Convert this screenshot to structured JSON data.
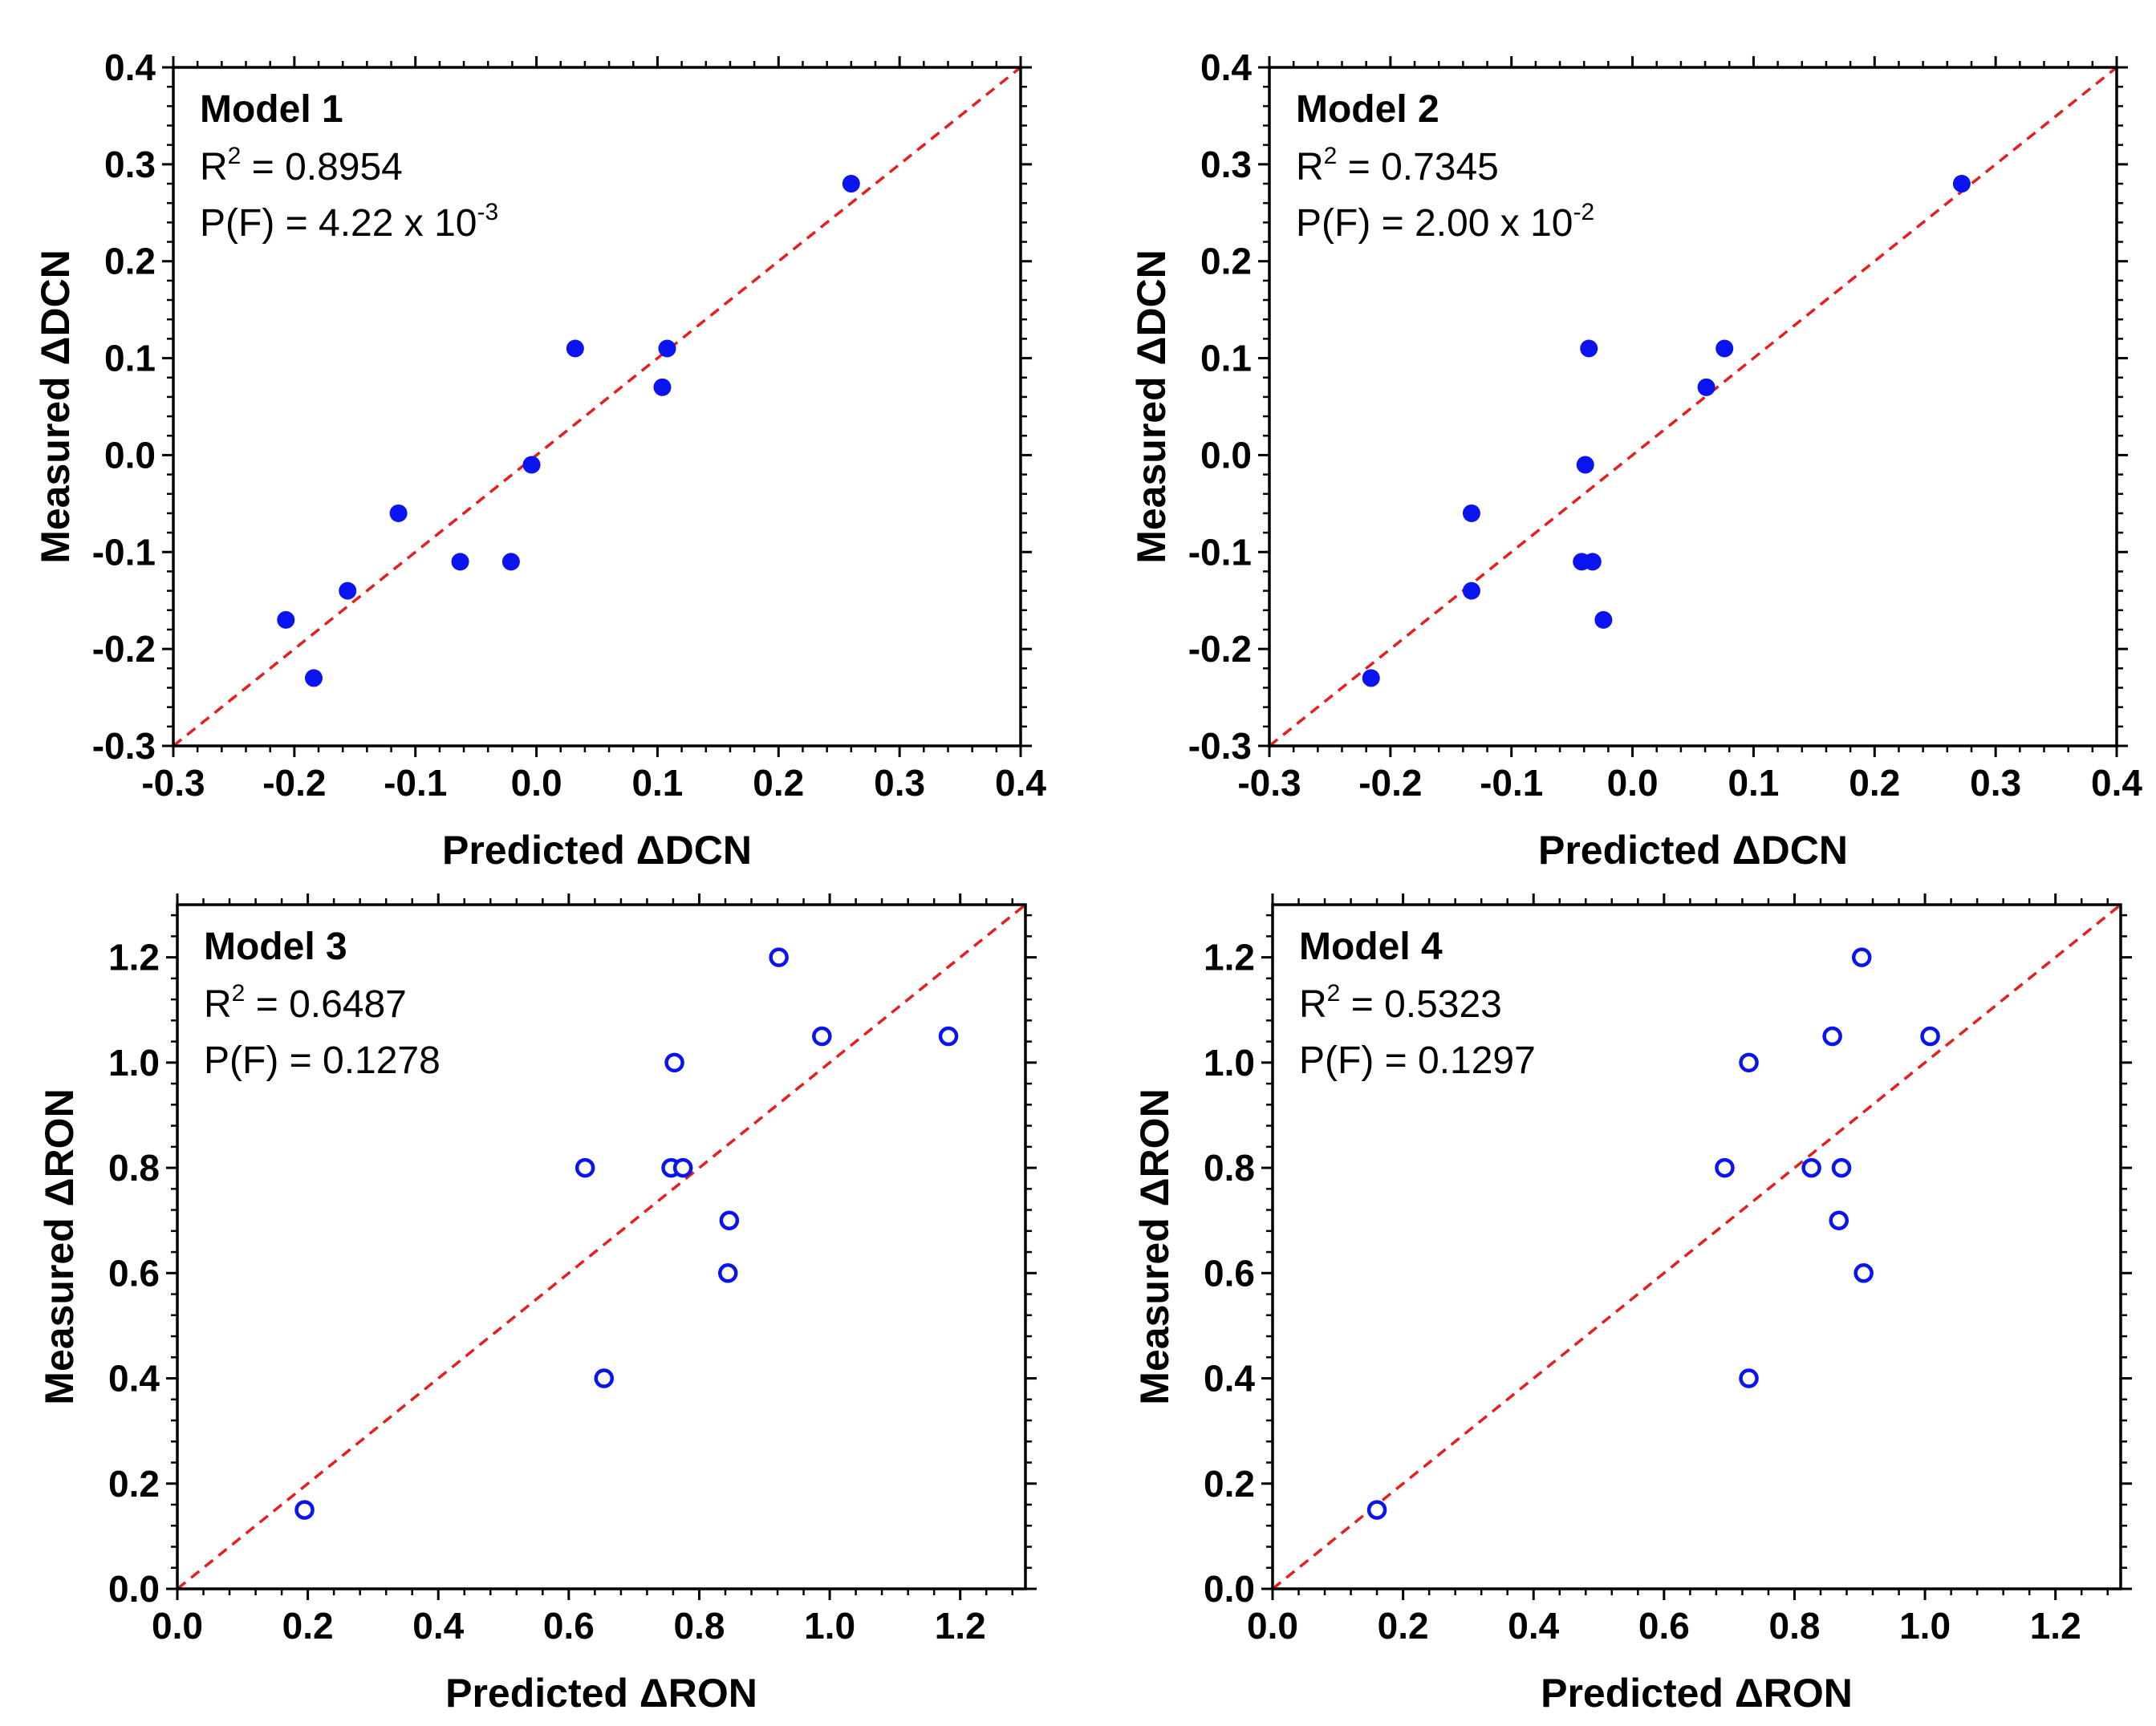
{
  "colors": {
    "marker": "#0a14f0",
    "reference_line": "#e61e1e",
    "axes": "#000000",
    "background": "#ffffff"
  },
  "chart_data": [
    {
      "type": "scatter",
      "marker_style": "filled-circle",
      "panel": {
        "model_label": "Model 1",
        "r2_prefix": "R",
        "r2_sup": "2",
        "r2_value": " = 0.8954",
        "pf_prefix": "P(F) = 4.22 x 10",
        "pf_sup": "-3"
      },
      "xlabel": "Predicted ΔDCN",
      "ylabel": "Measured ΔDCN",
      "xlim": [
        -0.3,
        0.4
      ],
      "ylim": [
        -0.3,
        0.4
      ],
      "x_ticks": [
        "-0.3",
        "-0.2",
        "-0.1",
        "0.0",
        "0.1",
        "0.2",
        "0.3",
        "0.4"
      ],
      "y_ticks": [
        "-0.3",
        "-0.2",
        "-0.1",
        "0.0",
        "0.1",
        "0.2",
        "0.3",
        "0.4"
      ],
      "reference_line": "y = x",
      "points": [
        {
          "x": 0.26,
          "y": 0.28
        },
        {
          "x": 0.032,
          "y": 0.11
        },
        {
          "x": 0.108,
          "y": 0.11
        },
        {
          "x": 0.104,
          "y": 0.07
        },
        {
          "x": -0.004,
          "y": -0.01
        },
        {
          "x": -0.114,
          "y": -0.06
        },
        {
          "x": -0.063,
          "y": -0.11
        },
        {
          "x": -0.021,
          "y": -0.11
        },
        {
          "x": -0.156,
          "y": -0.14
        },
        {
          "x": -0.207,
          "y": -0.17
        },
        {
          "x": -0.184,
          "y": -0.23
        }
      ]
    },
    {
      "type": "scatter",
      "marker_style": "filled-circle",
      "panel": {
        "model_label": "Model 2",
        "r2_prefix": "R",
        "r2_sup": "2",
        "r2_value": " = 0.7345",
        "pf_prefix": "P(F) = 2.00 x 10",
        "pf_sup": "-2"
      },
      "xlabel": "Predicted ΔDCN",
      "ylabel": "Measured ΔDCN",
      "xlim": [
        -0.3,
        0.4
      ],
      "ylim": [
        -0.3,
        0.4
      ],
      "x_ticks": [
        "-0.3",
        "-0.2",
        "-0.1",
        "0.0",
        "0.1",
        "0.2",
        "0.3",
        "0.4"
      ],
      "y_ticks": [
        "-0.3",
        "-0.2",
        "-0.1",
        "0.0",
        "0.1",
        "0.2",
        "0.3",
        "0.4"
      ],
      "reference_line": "y = x",
      "points": [
        {
          "x": 0.272,
          "y": 0.28
        },
        {
          "x": -0.036,
          "y": 0.11
        },
        {
          "x": 0.076,
          "y": 0.11
        },
        {
          "x": 0.061,
          "y": 0.07
        },
        {
          "x": -0.039,
          "y": -0.01
        },
        {
          "x": -0.133,
          "y": -0.06
        },
        {
          "x": -0.042,
          "y": -0.11
        },
        {
          "x": -0.033,
          "y": -0.11
        },
        {
          "x": -0.133,
          "y": -0.14
        },
        {
          "x": -0.024,
          "y": -0.17
        },
        {
          "x": -0.216,
          "y": -0.23
        }
      ]
    },
    {
      "type": "scatter",
      "marker_style": "open-circle",
      "panel": {
        "model_label": "Model 3",
        "r2_prefix": "R",
        "r2_sup": "2",
        "r2_value": " = 0.6487",
        "pf_prefix": "P(F) = 0.1278",
        "pf_sup": ""
      },
      "xlabel": "Predicted ΔRON",
      "ylabel": "Measured ΔRON",
      "xlim": [
        0.0,
        1.3
      ],
      "ylim": [
        0.0,
        1.3
      ],
      "x_ticks": [
        "0.0",
        "0.2",
        "0.4",
        "0.6",
        "0.8",
        "1.0",
        "1.2"
      ],
      "y_ticks": [
        "0.0",
        "0.2",
        "0.4",
        "0.6",
        "0.8",
        "1.0",
        "1.2"
      ],
      "reference_line": "y = x",
      "points": [
        {
          "x": 0.922,
          "y": 1.2
        },
        {
          "x": 0.988,
          "y": 1.05
        },
        {
          "x": 1.182,
          "y": 1.05
        },
        {
          "x": 0.762,
          "y": 1.0
        },
        {
          "x": 0.625,
          "y": 0.8
        },
        {
          "x": 0.757,
          "y": 0.8
        },
        {
          "x": 0.775,
          "y": 0.8
        },
        {
          "x": 0.846,
          "y": 0.7
        },
        {
          "x": 0.844,
          "y": 0.6
        },
        {
          "x": 0.654,
          "y": 0.4
        },
        {
          "x": 0.195,
          "y": 0.15
        }
      ]
    },
    {
      "type": "scatter",
      "marker_style": "open-circle",
      "panel": {
        "model_label": "Model 4",
        "r2_prefix": "R",
        "r2_sup": "2",
        "r2_value": " = 0.5323",
        "pf_prefix": "P(F) = 0.1297",
        "pf_sup": ""
      },
      "xlabel": "Predicted ΔRON",
      "ylabel": "Measured ΔRON",
      "xlim": [
        0.0,
        1.3
      ],
      "ylim": [
        0.0,
        1.3
      ],
      "x_ticks": [
        "0.0",
        "0.2",
        "0.4",
        "0.6",
        "0.8",
        "1.0",
        "1.2"
      ],
      "y_ticks": [
        "0.0",
        "0.2",
        "0.4",
        "0.6",
        "0.8",
        "1.0",
        "1.2"
      ],
      "reference_line": "y = x",
      "points": [
        {
          "x": 0.903,
          "y": 1.2
        },
        {
          "x": 0.858,
          "y": 1.05
        },
        {
          "x": 1.008,
          "y": 1.05
        },
        {
          "x": 0.73,
          "y": 1.0
        },
        {
          "x": 0.693,
          "y": 0.8
        },
        {
          "x": 0.826,
          "y": 0.8
        },
        {
          "x": 0.872,
          "y": 0.8
        },
        {
          "x": 0.868,
          "y": 0.7
        },
        {
          "x": 0.906,
          "y": 0.6
        },
        {
          "x": 0.73,
          "y": 0.4
        },
        {
          "x": 0.16,
          "y": 0.15
        }
      ]
    }
  ]
}
